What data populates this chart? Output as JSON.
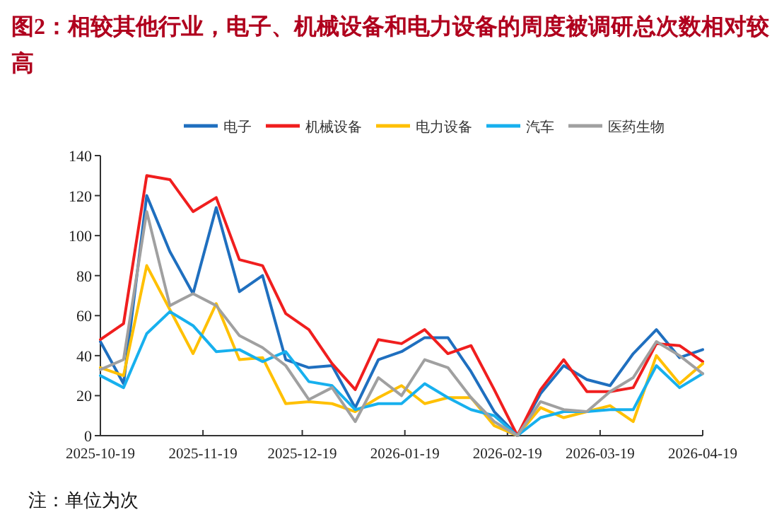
{
  "chart_data": {
    "type": "line",
    "title": "图2：相较其他行业，电子、机械设备和电力设备的周度被调研总次数相对较高",
    "annotations": [
      "注：单位为次"
    ],
    "x": [
      "2025-10-19",
      "2025-10-26",
      "2025-11-02",
      "2025-11-09",
      "2025-11-16",
      "2025-11-23",
      "2025-11-30",
      "2025-12-07",
      "2025-12-14",
      "2025-12-21",
      "2025-12-28",
      "2026-01-04",
      "2026-01-11",
      "2026-01-18",
      "2026-01-25",
      "2026-02-01",
      "2026-02-08",
      "2026-02-15",
      "2026-02-22",
      "2026-03-01",
      "2026-03-08",
      "2026-03-15",
      "2026-03-22",
      "2026-03-29",
      "2026-04-05",
      "2026-04-12",
      "2026-04-19"
    ],
    "series": [
      {
        "name": "电子",
        "color": "#1f6fbf",
        "values": [
          47,
          26,
          120,
          92,
          71,
          114,
          72,
          80,
          38,
          34,
          35,
          14,
          38,
          42,
          49,
          49,
          32,
          12,
          0,
          21,
          35,
          28,
          25,
          41,
          53,
          39,
          43
        ]
      },
      {
        "name": "机械设备",
        "color": "#f01e1e",
        "values": [
          48,
          56,
          130,
          128,
          112,
          119,
          88,
          85,
          61,
          53,
          36,
          23,
          48,
          46,
          53,
          41,
          45,
          23,
          0,
          23,
          38,
          22,
          22,
          24,
          46,
          45,
          37
        ]
      },
      {
        "name": "电力设备",
        "color": "#ffc000",
        "values": [
          34,
          30,
          85,
          63,
          41,
          66,
          38,
          39,
          16,
          17,
          16,
          12,
          19,
          25,
          16,
          19,
          19,
          5,
          0,
          14,
          9,
          12,
          15,
          7,
          40,
          26,
          36
        ]
      },
      {
        "name": "汽车",
        "color": "#17b0ee",
        "values": [
          30,
          24,
          51,
          62,
          55,
          42,
          43,
          37,
          42,
          27,
          25,
          13,
          16,
          16,
          26,
          19,
          13,
          10,
          0,
          9,
          12,
          12,
          13,
          13,
          35,
          24,
          31
        ]
      },
      {
        "name": "医药生物",
        "color": "#a0a0a0",
        "values": [
          33,
          38,
          112,
          65,
          71,
          65,
          50,
          44,
          35,
          18,
          24,
          7,
          29,
          20,
          38,
          34,
          19,
          7,
          0,
          17,
          13,
          12,
          22,
          29,
          47,
          40,
          31
        ]
      }
    ],
    "xlim": [
      "2025-10-19",
      "2026-04-19"
    ],
    "xticks": [
      "2025-10-19",
      "2025-11-19",
      "2025-12-19",
      "2026-01-19",
      "2026-02-19",
      "2026-03-19",
      "2026-04-19"
    ],
    "ylim": [
      0,
      140
    ],
    "yticks": [
      0,
      20,
      40,
      60,
      80,
      100,
      120,
      140
    ],
    "grid": false,
    "legend": "top",
    "marker": "none",
    "line_style": "solid"
  }
}
